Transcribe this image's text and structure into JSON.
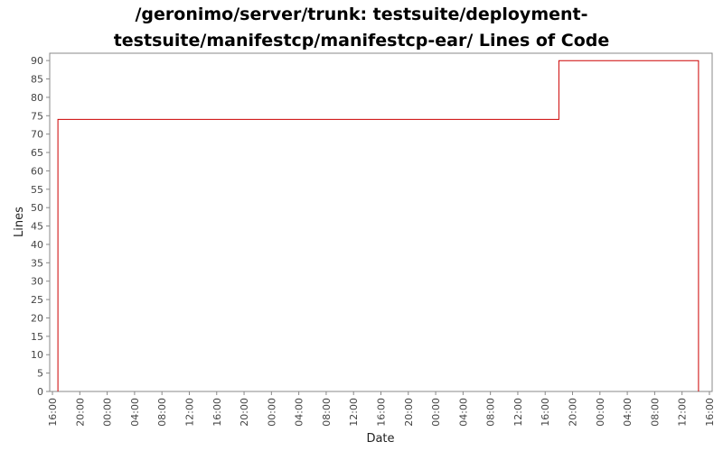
{
  "title_lines": [
    "/geronimo/server/trunk: testsuite/deployment-",
    "testsuite/manifestcp/manifestcp-ear/ Lines of Code"
  ],
  "chart_data": {
    "type": "line",
    "title": "/geronimo/server/trunk: testsuite/deployment-testsuite/manifestcp/manifestcp-ear/ Lines of Code",
    "xlabel": "Date",
    "ylabel": "Lines",
    "ylim": [
      0,
      92
    ],
    "yticks": [
      0,
      5,
      10,
      15,
      20,
      25,
      30,
      35,
      40,
      45,
      50,
      55,
      60,
      65,
      70,
      75,
      80,
      85,
      90
    ],
    "xlim": [
      -0.1,
      24.1
    ],
    "xtick_labels": [
      "16:00",
      "20:00",
      "00:00",
      "04:00",
      "08:00",
      "12:00",
      "16:00",
      "20:00",
      "00:00",
      "04:00",
      "08:00",
      "12:00",
      "16:00",
      "20:00",
      "00:00",
      "04:00",
      "08:00",
      "12:00",
      "16:00",
      "20:00",
      "00:00",
      "04:00",
      "08:00",
      "12:00",
      "16:00"
    ],
    "step": true,
    "series": [
      {
        "color": "#cc0000",
        "x": [
          0.2,
          0.2,
          18.5,
          18.5,
          23.6,
          23.6
        ],
        "y": [
          0,
          74,
          74,
          90,
          90,
          0
        ]
      }
    ],
    "grid": false,
    "legend": "none"
  },
  "colors": {
    "series": "#cc0000",
    "frame": "#888888",
    "background": "#ffffff"
  }
}
